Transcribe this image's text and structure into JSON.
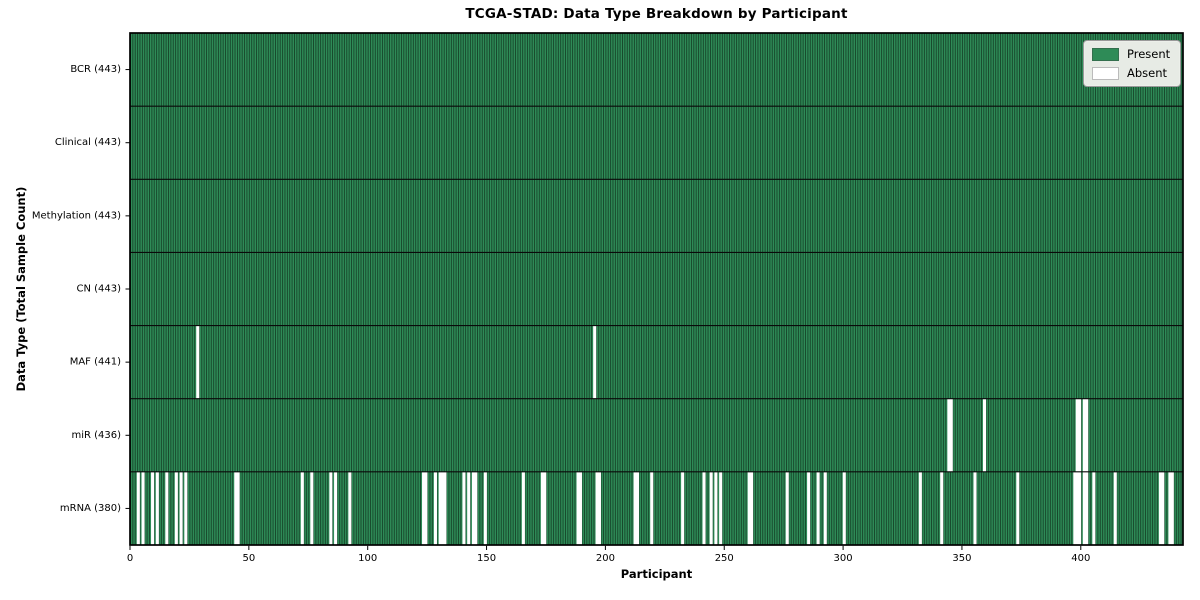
{
  "chart_data": {
    "type": "heatmap",
    "title": "TCGA-STAD: Data Type Breakdown by Participant",
    "xlabel": "Participant",
    "ylabel": "Data Type (Total Sample Count)",
    "n_participants": 443,
    "xlim": [
      0,
      443
    ],
    "x_ticks": [
      0,
      50,
      100,
      150,
      200,
      250,
      300,
      350,
      400
    ],
    "grid": false,
    "legend_position": "upper right",
    "colors": {
      "present": "#2e8b57",
      "bar_edge": "#164429",
      "absent": "#ffffff",
      "row_divider": "#0a0a0a",
      "spine": "#000000",
      "legend_background": "#e7ebe5"
    },
    "legend": [
      {
        "label": "Present",
        "color": "#2e8b57"
      },
      {
        "label": "Absent",
        "color": "#ffffff"
      }
    ],
    "rows": [
      {
        "label": "BCR",
        "total": 443,
        "display": "BCR (443)",
        "absent": []
      },
      {
        "label": "Clinical",
        "total": 443,
        "display": "Clinical (443)",
        "absent": []
      },
      {
        "label": "Methylation",
        "total": 443,
        "display": "Methylation (443)",
        "absent": []
      },
      {
        "label": "CN",
        "total": 443,
        "display": "CN (443)",
        "absent": []
      },
      {
        "label": "MAF",
        "total": 441,
        "display": "MAF (441)",
        "absent": [
          28,
          195
        ]
      },
      {
        "label": "miR",
        "total": 436,
        "display": "miR (436)",
        "absent": [
          344,
          345,
          359,
          398,
          399,
          401,
          402
        ]
      },
      {
        "label": "mRNA",
        "total": 380,
        "display": "mRNA (380)",
        "absent": [
          3,
          5,
          9,
          11,
          15,
          19,
          21,
          23,
          44,
          45,
          72,
          76,
          84,
          86,
          92,
          123,
          124,
          128,
          130,
          131,
          132,
          140,
          142,
          144,
          145,
          149,
          165,
          173,
          174,
          188,
          189,
          196,
          197,
          212,
          213,
          219,
          232,
          241,
          244,
          246,
          248,
          260,
          261,
          276,
          285,
          289,
          292,
          300,
          332,
          341,
          355,
          373,
          397,
          398,
          399,
          401,
          402,
          405,
          414,
          433,
          434,
          437,
          438
        ]
      }
    ]
  }
}
